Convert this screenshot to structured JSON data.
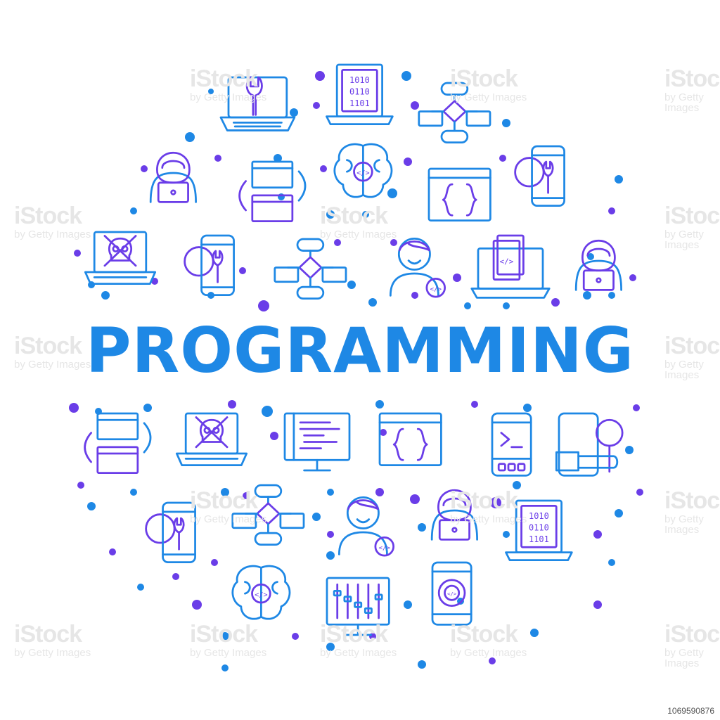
{
  "title": "PROGRAMMING",
  "watermark": {
    "brand": "iStock",
    "byline": "by Getty Images"
  },
  "stock_id": "1069590876",
  "colors": {
    "blue": "#1e88e5",
    "violet": "#6a3de8",
    "background": "#ffffff"
  },
  "icons_top": [
    "laptop-wrench-icon",
    "laptop-binary-icon",
    "flowchart-icon",
    "hacker-laptop-icon",
    "app-windows-sync-icon",
    "brain-code-icon",
    "browser-braces-icon",
    "phone-wrench-gear-icon",
    "laptop-skull-icon",
    "phone-wrench-gear-icon",
    "flowchart-icon",
    "developer-code-icon",
    "laptop-code-files-icon",
    "hacker-laptop-icon"
  ],
  "icons_bottom": [
    "app-windows-sync-icon",
    "laptop-skull-icon",
    "monitor-code-icon",
    "browser-braces-icon",
    "phone-terminal-icon",
    "phone-magnifier-hand-icon",
    "phone-wrench-gear-icon",
    "flowchart-icon",
    "developer-code-icon",
    "hacker-laptop-icon",
    "laptop-binary-icon",
    "brain-code-icon",
    "monitor-sliders-icon",
    "phone-gear-code-icon"
  ]
}
